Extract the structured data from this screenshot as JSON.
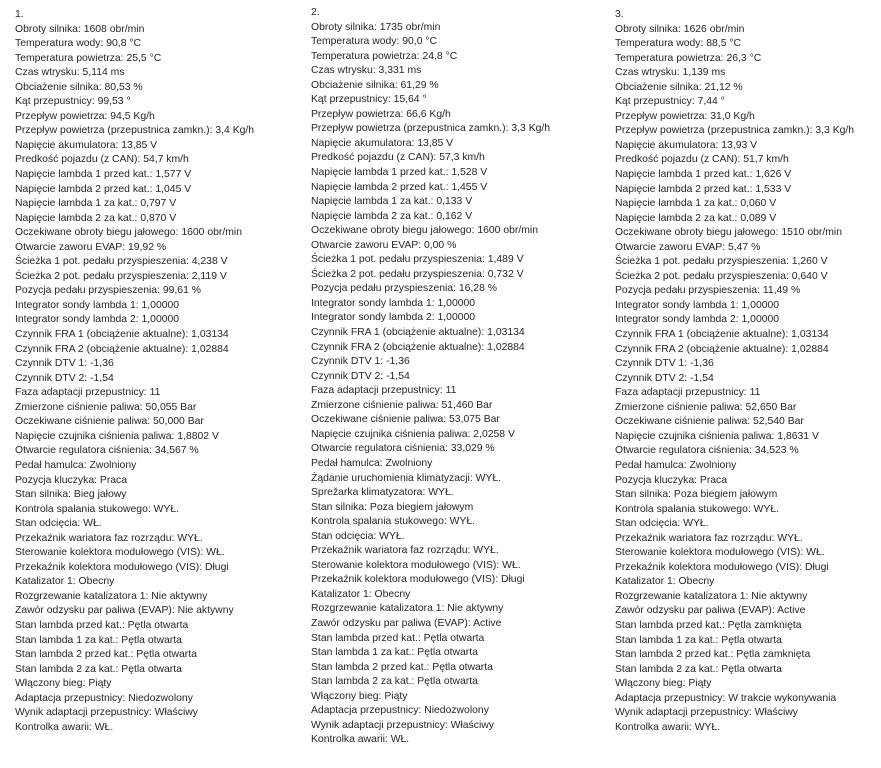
{
  "columns": [
    {
      "heading": "1.",
      "lines": [
        "Obroty silnika: 1608 obr/min",
        "Temperatura wody: 90,8 °C",
        "Temperatura powietrza: 25,5 °C",
        "Czas wtrysku: 5,114 ms",
        "Obciażenie silnika: 80,53 %",
        "Kąt przepustnicy: 99,53 °",
        "Przepływ powietrza: 94,5 Kg/h",
        "Przepływ powietrza (przepustnica zamkn.): 3,4 Kg/h",
        "Napięcie akumulatora: 13,85 V",
        "Predkość pojazdu (z CAN): 54,7 km/h",
        "Napięcie lambda 1 przed kat.: 1,577 V",
        "Napięcie lambda 2 przed kat.: 1,045 V",
        "Napięcie lambda 1 za kat.: 0,797 V",
        "Napięcie lambda 2 za kat.: 0,870 V",
        "Oczekiwane obroty biegu jałowego: 1600 obr/min",
        "Otwarcie zaworu EVAP: 19,92 %",
        "Ścieżka 1 pot. pedału przyspieszenia: 4,238 V",
        "Ścieżka 2 pot. pedału przyspieszenia: 2,119 V",
        "Pozycja pedału przyspieszenia: 99,61 %",
        "Integrator sondy lambda 1: 1,00000",
        "Integrator sondy lambda 2: 1,00000",
        "Czynnik FRA 1 (obciążenie aktualne): 1,03134",
        "Czynnik FRA 2 (obciążenie aktualne): 1,02884",
        "Czynnik DTV 1: -1,36",
        "Czynnik DTV 2: -1,54",
        "Faza adaptacji przepustnicy: 11",
        "Zmierzone ciśnienie paliwa: 50,055 Bar",
        "Oczekiwane ciśnienie paliwa: 50,000 Bar",
        "Napięcie czujnika ciśnienia paliwa: 1,8802 V",
        "Otwarcie regulatora ciśnienia: 34,567 %",
        "Pedał hamulca: Zwolniony",
        "Pozycja kluczyka: Praca",
        "Stan silnika: Bieg jałowy",
        "Kontrola spalania stukowego: WYŁ.",
        "Stan odcięcia: WŁ.",
        "Przekaźnik wariatora faz rozrządu: WYŁ.",
        "Sterowanie kolektora modułowego (VIS): WŁ.",
        "Przekaźnik kolektora modułowego (VIS): Długi",
        "Katalizator 1: Obecny",
        "Rozgrzewanie katalizatora 1: Nie aktywny",
        "Zawór odzysku par paliwa (EVAP): Nie aktywny",
        "Stan lambda przed kat.: Pętla otwarta",
        "Stan lambda 1 za kat.: Pętla otwarta",
        "Stan lambda 2 przed kat.: Pętla otwarta",
        "Stan lambda 2 za kat.: Pętla otwarta",
        "Włączony bieg: Piąty",
        "Adaptacja przepustnicy: Niedozwolony",
        "Wynik adaptacji przepustnicy: Właściwy",
        "Kontrolka awarii: WŁ."
      ]
    },
    {
      "heading": "2.",
      "lines": [
        "Obroty silnika: 1735 obr/min",
        "Temperatura wody: 90,0 °C",
        "Temperatura powietrza: 24,8 °C",
        "Czas wtrysku: 3,331 ms",
        "Obciażenie silnika: 61,29 %",
        "Kąt przepustnicy: 15,64 °",
        "Przepływ powietrza: 66,6 Kg/h",
        "Przepływ powietrza (przepustnica zamkn.): 3,3 Kg/h",
        "Napięcie akumulatora: 13,85 V",
        "Predkość pojazdu (z CAN): 57,3 km/h",
        "Napięcie lambda 1 przed kat.: 1,528 V",
        "Napięcie lambda 2 przed kat.: 1,455 V",
        "Napięcie lambda 1 za kat.: 0,133 V",
        "Napięcie lambda 2 za kat.: 0,162 V",
        "Oczekiwane obroty biegu jałowego: 1600 obr/min",
        "Otwarcie zaworu EVAP: 0,00 %",
        "Ścieżka 1 pot. pedału przyspieszenia: 1,489 V",
        "Ścieżka 2 pot. pedału przyspieszenia: 0,732 V",
        "Pozycja pedału przyspieszenia: 16,28 %",
        "Integrator sondy lambda 1: 1,00000",
        "Integrator sondy lambda 2: 1,00000",
        "Czynnik FRA 1 (obciążenie aktualne): 1,03134",
        "Czynnik FRA 2 (obciążenie aktualne): 1,02884",
        "Czynnik DTV 1: -1,36",
        "Czynnik DTV 2: -1,54",
        "Faza adaptacji przepustnicy: 11",
        "Zmierzone ciśnienie paliwa: 51,460 Bar",
        "Oczekiwane ciśnienie paliwa: 53,075 Bar",
        "Napięcie czujnika ciśnienia paliwa: 2,0258 V",
        "Otwarcie regulatora ciśnienia: 33,029 %",
        "Pedał hamulca: Zwolniony",
        "Żądanie uruchomienia klimatyzacji: WYŁ.",
        "Sprežarka klimatyzatora: WYŁ.",
        "Stan silnika: Poza biegiem jałowym",
        "Kontrola spalania stukowego: WYŁ.",
        "Stan odcięcia: WYŁ.",
        "Przekaźnik wariatora faz rozrządu: WYŁ.",
        "Sterowanie kolektora modułowego (VIS): WŁ.",
        "Przekaźnik kolektora modułowego (VIS): Długi",
        "Katalizator 1: Obecny",
        "Rozgrzewanie katalizatora 1: Nie aktywny",
        "Zawór odzysku par paliwa (EVAP): Active",
        "Stan lambda przed kat.: Pętla otwarta",
        "Stan lambda 1 za kat.: Pętla otwarta",
        "Stan lambda 2 przed kat.: Pętla otwarta",
        "Stan lambda 2 za kat.: Pętla otwarta",
        "Włączony bieg: Piąty",
        "Adaptacja przepustnicy: Niedozwolony",
        "Wynik adaptacji przepustnicy: Właściwy",
        "Kontrolka awarii: WŁ."
      ]
    },
    {
      "heading": "3.",
      "lines": [
        "Obroty silnika: 1626 obr/min",
        "Temperatura wody: 88,5 °C",
        "Temperatura powietrza: 26,3 °C",
        "Czas wtrysku: 1,139 ms",
        "Obciażenie silnika: 21,12 %",
        "Kąt przepustnicy: 7,44 °",
        "Przepływ powietrza: 31,0 Kg/h",
        "Przepływ powietrza (przepustnica zamkn.): 3,3 Kg/h",
        "Napięcie akumulatora: 13,93 V",
        "Predkość pojazdu (z CAN): 51,7 km/h",
        "Napięcie lambda 1 przed kat.: 1,626 V",
        "Napięcie lambda 2 przed kat.: 1,533 V",
        "Napięcie lambda 1 za kat.: 0,060 V",
        "Napięcie lambda 2 za kat.: 0,089 V",
        "Oczekiwane obroty biegu jałowego: 1510 obr/min",
        "Otwarcie zaworu EVAP: 5,47 %",
        "Ścieżka 1 pot. pedału przyspieszenia: 1,260 V",
        "Ścieżka 2 pot. pedału przyspieszenia: 0,640 V",
        "Pozycja pedału przyspieszenia: 11,49 %",
        "Integrator sondy lambda 1: 1,00000",
        "Integrator sondy lambda 2: 1,00000",
        "Czynnik FRA 1 (obciążenie aktualne): 1,03134",
        "Czynnik FRA 2 (obciążenie aktualne): 1,02884",
        "Czynnik DTV 1: -1,36",
        "Czynnik DTV 2: -1,54",
        "Faza adaptacji przepustnicy: 11",
        "Zmierzone ciśnienie paliwa: 52,650 Bar",
        "Oczekiwane ciśnienie paliwa: 52,540 Bar",
        "Napięcie czujnika ciśnienia paliwa: 1,8631 V",
        "Otwarcie regulatora ciśnienia: 34,523 %",
        "Pedał hamulca: Zwolniony",
        "Pozycja kluczyka: Praca",
        "Stan silnika: Poza biegiem jałowym",
        "Kontrola spalania stukowego: WYŁ.",
        "Stan odcięcia: WYŁ.",
        "Przekaźnik wariatora faz rozrządu: WYŁ.",
        "Sterowanie kolektora modułowego (VIS): WŁ.",
        "Przekaźnik kolektora modułowego (VIS): Długi",
        "Katalizator 1: Obecny",
        "Rozgrzewanie katalizatora 1: Nie aktywny",
        "Zawór odzysku par paliwa (EVAP): Active",
        "Stan lambda przed kat.: Pętla zamknięta",
        "Stan lambda 1 za kat.: Pętla otwarta",
        "Stan lambda 2 przed kat.: Pętla zamknięta",
        "Stan lambda 2 za kat.: Pętla otwarta",
        "Włączony bieg: Piąty",
        "Adaptacja przepustnicy: W trakcie wykonywania",
        "Wynik adaptacji przepustnicy: Właściwy",
        "Kontrolka awarii: WYŁ."
      ]
    }
  ]
}
